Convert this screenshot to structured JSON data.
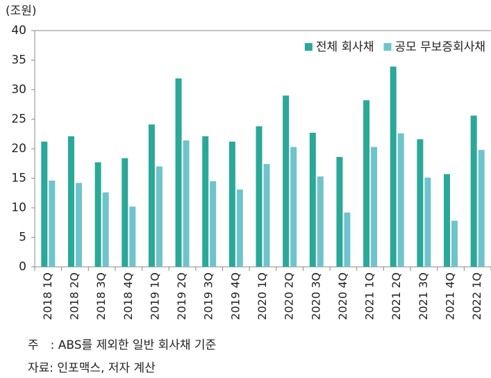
{
  "chart_data": {
    "type": "bar",
    "y_label": "(조원)",
    "categories": [
      "2018 1Q",
      "2018 2Q",
      "2018 3Q",
      "2018 4Q",
      "2019 1Q",
      "2019 2Q",
      "2019 3Q",
      "2019 4Q",
      "2020 1Q",
      "2020 2Q",
      "2020 3Q",
      "2020 4Q",
      "2021 1Q",
      "2021 2Q",
      "2021 3Q",
      "2021 4Q",
      "2022 1Q"
    ],
    "series": [
      {
        "name": "전체 회사채",
        "color": "#2aa898",
        "values": [
          21.2,
          22.1,
          17.7,
          18.4,
          24.1,
          31.9,
          22.1,
          21.2,
          23.8,
          29.0,
          22.7,
          18.6,
          28.2,
          33.9,
          21.6,
          15.7,
          25.6
        ]
      },
      {
        "name": "공모 무보증회사채",
        "color": "#6fc3cc",
        "values": [
          14.6,
          14.2,
          12.6,
          10.2,
          17.0,
          21.4,
          14.5,
          13.1,
          17.4,
          20.3,
          15.3,
          9.2,
          20.3,
          22.6,
          15.1,
          7.8,
          19.8
        ]
      }
    ],
    "ylim": [
      0,
      40
    ],
    "yticks": [
      0,
      5,
      10,
      15,
      20,
      25,
      30,
      35,
      40
    ],
    "legend": "top-right",
    "notes": [
      "주　: ABS를 제외한 일반 회사채 기준",
      "자료: 인포맥스, 저자 계산"
    ]
  }
}
